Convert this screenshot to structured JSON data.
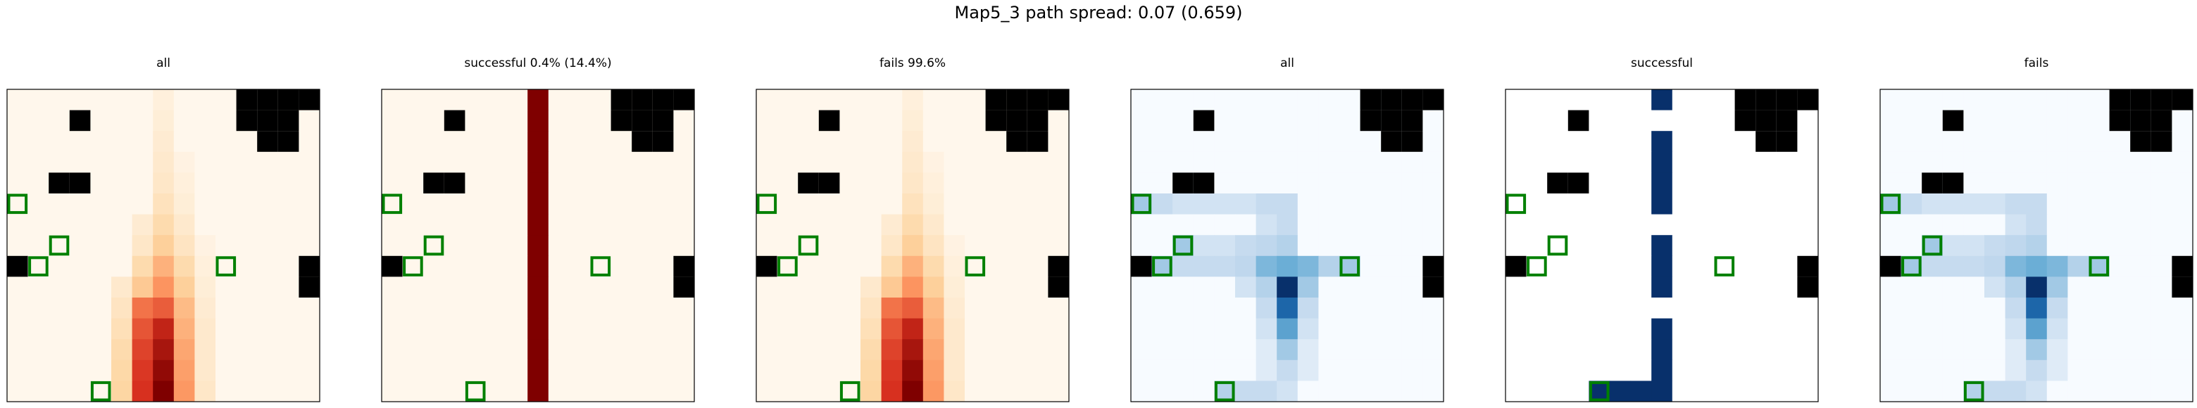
{
  "suptitle": "Map5_3 path spread: 0.07 (0.659)",
  "chart_data": [
    {
      "type": "heatmap",
      "title": "all",
      "colormap": "orange-red",
      "values_source": "heat_all"
    },
    {
      "type": "heatmap",
      "title": "successful 0.4% (14.4%)",
      "colormap": "orange-red",
      "values_source": "heat_success"
    },
    {
      "type": "heatmap",
      "title": "fails 99.6%",
      "colormap": "orange-red",
      "values_source": "heat_all"
    },
    {
      "type": "heatmap",
      "title": "all",
      "colormap": "blues",
      "values_source": "blue_all"
    },
    {
      "type": "heatmap",
      "title": "successful",
      "colormap": "blues",
      "values_source": "blue_success"
    },
    {
      "type": "heatmap",
      "title": "fails",
      "colormap": "blues",
      "values_source": "blue_all"
    }
  ],
  "grid": {
    "size": 15,
    "obstacles": [
      [
        0,
        11
      ],
      [
        0,
        12
      ],
      [
        0,
        13
      ],
      [
        0,
        14
      ],
      [
        1,
        3
      ],
      [
        1,
        11
      ],
      [
        1,
        12
      ],
      [
        1,
        13
      ],
      [
        2,
        12
      ],
      [
        2,
        13
      ],
      [
        4,
        2
      ],
      [
        4,
        3
      ],
      [
        8,
        0
      ],
      [
        8,
        14
      ],
      [
        9,
        14
      ]
    ],
    "goals": [
      [
        5,
        0
      ],
      [
        7,
        2
      ],
      [
        8,
        1
      ],
      [
        8,
        10
      ],
      [
        14,
        4
      ]
    ],
    "goal_color": "#008000",
    "obstacle_color": "#000000"
  },
  "heat_all": [
    [
      0,
      0,
      0,
      0,
      0,
      0,
      0,
      0.03,
      0,
      0,
      0,
      0,
      0,
      0,
      0
    ],
    [
      0,
      0,
      0,
      0,
      0,
      0,
      0,
      0.04,
      0,
      0,
      0,
      0,
      0,
      0,
      0
    ],
    [
      0,
      0,
      0,
      0,
      0,
      0,
      0,
      0.05,
      0,
      0,
      0,
      0,
      0,
      0,
      0
    ],
    [
      0,
      0,
      0,
      0,
      0,
      0,
      0,
      0.06,
      0.02,
      0,
      0,
      0,
      0,
      0,
      0
    ],
    [
      0,
      0,
      0,
      0,
      0,
      0,
      0,
      0.07,
      0.03,
      0,
      0,
      0,
      0,
      0,
      0
    ],
    [
      0,
      0,
      0,
      0,
      0,
      0,
      0,
      0.09,
      0.04,
      0,
      0,
      0,
      0,
      0,
      0
    ],
    [
      0,
      0,
      0,
      0,
      0,
      0,
      0.05,
      0.12,
      0.06,
      0,
      0,
      0,
      0,
      0,
      0
    ],
    [
      0,
      0,
      0,
      0,
      0,
      0,
      0.07,
      0.16,
      0.08,
      0.02,
      0,
      0,
      0,
      0,
      0
    ],
    [
      0,
      0,
      0,
      0,
      0,
      0,
      0.12,
      0.25,
      0.12,
      0.03,
      0,
      0,
      0,
      0,
      0
    ],
    [
      0,
      0,
      0,
      0,
      0,
      0.06,
      0.18,
      0.33,
      0.16,
      0.04,
      0,
      0,
      0,
      0,
      0
    ],
    [
      0,
      0,
      0,
      0,
      0,
      0.08,
      0.42,
      0.48,
      0.22,
      0.05,
      0,
      0,
      0,
      0,
      0
    ],
    [
      0,
      0,
      0,
      0,
      0,
      0.1,
      0.5,
      0.7,
      0.25,
      0.06,
      0,
      0,
      0,
      0,
      0
    ],
    [
      0,
      0,
      0,
      0,
      0,
      0.12,
      0.55,
      0.82,
      0.28,
      0.06,
      0,
      0,
      0,
      0,
      0
    ],
    [
      0,
      0,
      0,
      0,
      0,
      0.13,
      0.58,
      0.92,
      0.3,
      0.06,
      0,
      0,
      0,
      0,
      0
    ],
    [
      0,
      0,
      0,
      0,
      0,
      0.14,
      0.6,
      1.0,
      0.32,
      0.07,
      0,
      0,
      0,
      0,
      0
    ]
  ],
  "heat_success": {
    "column": 7,
    "value": 1.0
  },
  "blue_all": [
    [
      0,
      0,
      0,
      0,
      0,
      0,
      0,
      0,
      0,
      0,
      0,
      0,
      0,
      0,
      0
    ],
    [
      0,
      0,
      0,
      0,
      0,
      0,
      0,
      0,
      0,
      0,
      0,
      0,
      0,
      0,
      0
    ],
    [
      0,
      0,
      0,
      0,
      0,
      0,
      0,
      0,
      0,
      0,
      0,
      0,
      0,
      0,
      0
    ],
    [
      0,
      0,
      0,
      0,
      0,
      0,
      0,
      0,
      0,
      0,
      0,
      0,
      0,
      0,
      0
    ],
    [
      0,
      0,
      0,
      0,
      0,
      0,
      0,
      0,
      0,
      0,
      0,
      0,
      0,
      0,
      0
    ],
    [
      0.3,
      0.2,
      0.15,
      0.15,
      0.15,
      0.15,
      0.2,
      0.2,
      0,
      0,
      0,
      0,
      0,
      0,
      0
    ],
    [
      0,
      0,
      0,
      0,
      0,
      0,
      0.15,
      0.2,
      0,
      0,
      0,
      0,
      0,
      0,
      0
    ],
    [
      0,
      0,
      0.3,
      0.15,
      0.15,
      0.2,
      0.22,
      0.25,
      0,
      0,
      0,
      0,
      0,
      0,
      0
    ],
    [
      0,
      0.3,
      0.2,
      0.2,
      0.2,
      0.22,
      0.4,
      0.45,
      0.4,
      0.25,
      0.3,
      0,
      0,
      0,
      0
    ],
    [
      0,
      0,
      0,
      0,
      0,
      0.15,
      0.25,
      1.0,
      0.3,
      0,
      0,
      0,
      0,
      0,
      0
    ],
    [
      0,
      0,
      0,
      0,
      0,
      0,
      0.2,
      0.75,
      0.2,
      0,
      0,
      0,
      0,
      0,
      0
    ],
    [
      0,
      0,
      0,
      0,
      0,
      0,
      0.15,
      0.5,
      0.15,
      0,
      0,
      0,
      0,
      0,
      0
    ],
    [
      0,
      0,
      0,
      0,
      0,
      0,
      0.1,
      0.3,
      0.1,
      0,
      0,
      0,
      0,
      0,
      0
    ],
    [
      0,
      0,
      0,
      0,
      0,
      0,
      0.1,
      0.2,
      0.1,
      0,
      0,
      0,
      0,
      0,
      0
    ],
    [
      0,
      0,
      0,
      0,
      0.25,
      0.2,
      0.2,
      0.15,
      0,
      0,
      0,
      0,
      0,
      0,
      0
    ]
  ],
  "blue_success": [
    [
      0,
      7
    ],
    [
      2,
      7
    ],
    [
      3,
      7
    ],
    [
      4,
      7
    ],
    [
      5,
      7
    ],
    [
      7,
      7
    ],
    [
      8,
      7
    ],
    [
      9,
      7
    ],
    [
      11,
      7
    ],
    [
      12,
      7
    ],
    [
      13,
      7
    ],
    [
      14,
      4
    ],
    [
      14,
      5
    ],
    [
      14,
      6
    ],
    [
      14,
      7
    ]
  ]
}
